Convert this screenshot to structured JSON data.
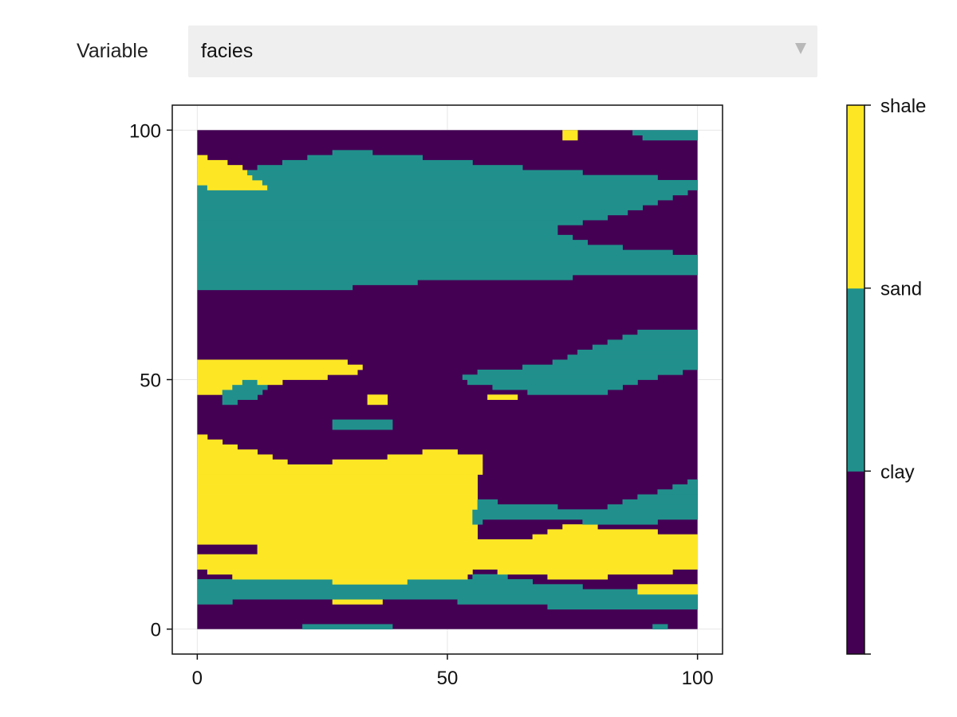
{
  "menu": {
    "label": "Variable",
    "selected": "facies"
  },
  "chart_data": {
    "type": "heatmap",
    "title": "",
    "xlabel": "",
    "ylabel": "",
    "xlim": [
      -5,
      105
    ],
    "ylim": [
      -5,
      105
    ],
    "x_ticks": [
      "0",
      "50",
      "100"
    ],
    "y_ticks": [
      "0",
      "50",
      "100"
    ],
    "grid": true,
    "grid_size": [
      100,
      100
    ],
    "extent": {
      "x": [
        0,
        100
      ],
      "y": [
        0,
        100
      ]
    },
    "categories": [
      "clay",
      "sand",
      "shale"
    ],
    "colors": {
      "background": "#440154",
      "clay": "#440154",
      "sand": "#21908c",
      "shale": "#fde725"
    },
    "colorbar": {
      "labels": [
        "clay",
        "sand",
        "shale"
      ],
      "colors": [
        "#440154",
        "#21908c",
        "#fde725"
      ]
    },
    "regions": [
      {
        "cat": "sand",
        "pts": [
          [
            0,
            68
          ],
          [
            25,
            68
          ],
          [
            50,
            70
          ],
          [
            100,
            71
          ],
          [
            100,
            75
          ],
          [
            80,
            77
          ],
          [
            70,
            80
          ],
          [
            85,
            83
          ],
          [
            100,
            88
          ],
          [
            100,
            90
          ],
          [
            70,
            92
          ],
          [
            50,
            94
          ],
          [
            30,
            96
          ],
          [
            10,
            92
          ],
          [
            0,
            91
          ]
        ]
      },
      {
        "cat": "shale",
        "pts": [
          [
            0,
            95
          ],
          [
            8,
            93
          ],
          [
            12,
            90
          ],
          [
            15,
            88
          ],
          [
            5,
            88
          ],
          [
            0,
            89
          ]
        ]
      },
      {
        "cat": "sand",
        "pts": [
          [
            86,
            100
          ],
          [
            100,
            100
          ],
          [
            100,
            98
          ],
          [
            90,
            98
          ]
        ]
      },
      {
        "cat": "shale",
        "pts": [
          [
            73,
            100
          ],
          [
            76,
            100
          ],
          [
            76,
            98.5
          ],
          [
            73,
            98.5
          ]
        ]
      },
      {
        "cat": "shale",
        "pts": [
          [
            0,
            54.5
          ],
          [
            25,
            54.5
          ],
          [
            33,
            53
          ],
          [
            32,
            51
          ],
          [
            20,
            50
          ],
          [
            10,
            48
          ],
          [
            0,
            47
          ]
        ]
      },
      {
        "cat": "sand",
        "pts": [
          [
            5,
            47.5
          ],
          [
            10,
            50
          ],
          [
            14,
            49
          ],
          [
            12,
            46
          ],
          [
            5,
            45
          ]
        ]
      },
      {
        "cat": "sand",
        "pts": [
          [
            52,
            51
          ],
          [
            70,
            53
          ],
          [
            75,
            55
          ],
          [
            90,
            60
          ],
          [
            100,
            60
          ],
          [
            100,
            52
          ],
          [
            90,
            50
          ],
          [
            80,
            47
          ],
          [
            70,
            47
          ],
          [
            55,
            49
          ]
        ]
      },
      {
        "cat": "shale",
        "pts": [
          [
            34,
            47
          ],
          [
            38,
            47
          ],
          [
            38,
            45
          ],
          [
            34,
            45
          ]
        ]
      },
      {
        "cat": "shale",
        "pts": [
          [
            58,
            47
          ],
          [
            64,
            47
          ],
          [
            64,
            46
          ],
          [
            58,
            46
          ]
        ]
      },
      {
        "cat": "sand",
        "pts": [
          [
            27,
            42
          ],
          [
            39,
            42
          ],
          [
            39,
            40
          ],
          [
            27,
            40
          ]
        ]
      },
      {
        "cat": "shale",
        "pts": [
          [
            0,
            39
          ],
          [
            10,
            36
          ],
          [
            20,
            33
          ],
          [
            35,
            34
          ],
          [
            42,
            35
          ],
          [
            48,
            36
          ],
          [
            57,
            35
          ],
          [
            56,
            26
          ],
          [
            56,
            12
          ],
          [
            50,
            8
          ],
          [
            35,
            5
          ],
          [
            20,
            6
          ],
          [
            10,
            10
          ],
          [
            0,
            12
          ]
        ]
      },
      {
        "cat": "sand",
        "pts": [
          [
            56,
            26
          ],
          [
            65,
            25
          ],
          [
            80,
            24
          ],
          [
            100,
            30
          ],
          [
            100,
            22
          ],
          [
            85,
            21
          ],
          [
            70,
            22
          ],
          [
            60,
            22
          ],
          [
            55,
            21
          ]
        ]
      },
      {
        "cat": "shale",
        "pts": [
          [
            56,
            18
          ],
          [
            65,
            18
          ],
          [
            75,
            21
          ],
          [
            85,
            20
          ],
          [
            100,
            19
          ],
          [
            100,
            12
          ],
          [
            90,
            11
          ],
          [
            75,
            10
          ],
          [
            65,
            11
          ],
          [
            56,
            12
          ]
        ]
      },
      {
        "cat": "sand",
        "pts": [
          [
            0,
            10
          ],
          [
            20,
            10
          ],
          [
            35,
            9
          ],
          [
            50,
            10
          ],
          [
            60,
            11
          ],
          [
            70,
            9
          ],
          [
            85,
            8
          ],
          [
            100,
            8
          ],
          [
            100,
            4
          ],
          [
            80,
            4
          ],
          [
            60,
            5
          ],
          [
            45,
            6
          ],
          [
            30,
            6
          ],
          [
            15,
            6
          ],
          [
            0,
            5
          ]
        ]
      },
      {
        "cat": "shale",
        "pts": [
          [
            88,
            9
          ],
          [
            100,
            9
          ],
          [
            100,
            7
          ],
          [
            88,
            7
          ]
        ]
      },
      {
        "cat": "sand",
        "pts": [
          [
            21,
            0
          ],
          [
            39,
            0
          ],
          [
            39,
            1.5
          ],
          [
            21,
            1.5
          ]
        ]
      },
      {
        "cat": "sand",
        "pts": [
          [
            91,
            0
          ],
          [
            94,
            0
          ],
          [
            94,
            1
          ],
          [
            91,
            1
          ]
        ]
      },
      {
        "cat": "clay",
        "pts": [
          [
            0,
            17
          ],
          [
            12,
            17
          ],
          [
            12,
            15
          ],
          [
            0,
            15
          ]
        ]
      }
    ]
  }
}
